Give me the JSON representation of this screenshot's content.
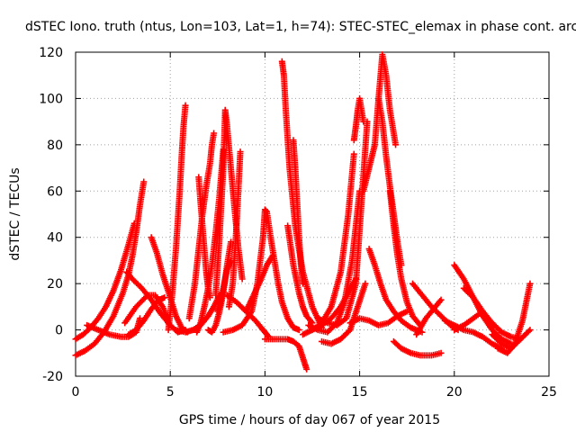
{
  "chart_data": {
    "type": "scatter",
    "title": "dSTEC Iono. truth (ntus, Lon=103, Lat=1, h=74): STEC-STEC_elemax in phase cont. arc",
    "xlabel": "GPS time / hours of day 067 of year 2015",
    "ylabel": "dSTEC  / TECUs",
    "xlim": [
      0,
      25
    ],
    "ylim": [
      -20,
      120
    ],
    "xticks": [
      0,
      5,
      10,
      15,
      20,
      25
    ],
    "yticks": [
      -20,
      0,
      20,
      40,
      60,
      80,
      100,
      120
    ],
    "grid": true,
    "marker": "+",
    "color": "#ff0000",
    "series": [
      {
        "x": [
          0.0,
          0.4,
          0.8,
          1.2,
          1.6,
          2.0,
          2.4,
          2.8,
          3.1
        ],
        "y": [
          -4,
          -2,
          1,
          5,
          10,
          17,
          26,
          37,
          46
        ]
      },
      {
        "x": [
          0.0,
          0.5,
          1.0,
          1.5,
          2.0,
          2.5,
          2.8,
          3.0,
          3.2,
          3.4,
          3.6
        ],
        "y": [
          -11,
          -9,
          -6,
          -1,
          6,
          16,
          24,
          32,
          42,
          54,
          64
        ]
      },
      {
        "x": [
          0.6,
          1.2,
          1.8,
          2.4,
          2.8,
          3.2,
          3.4
        ],
        "y": [
          2,
          0,
          -2,
          -3,
          -3,
          -1,
          5
        ]
      },
      {
        "x": [
          2.7,
          3.0,
          3.5,
          4.0,
          4.5,
          5.0,
          5.4,
          5.8
        ],
        "y": [
          25,
          22,
          18,
          13,
          7,
          2,
          -1,
          0
        ]
      },
      {
        "x": [
          2.6,
          3.2,
          3.8,
          4.2,
          4.6,
          4.9
        ],
        "y": [
          3,
          10,
          15,
          15,
          10,
          3
        ]
      },
      {
        "x": [
          2.8,
          3.2,
          3.6,
          4.0,
          4.4,
          4.7
        ],
        "y": [
          -2,
          0,
          4,
          9,
          13,
          14
        ]
      },
      {
        "x": [
          4.0,
          4.3,
          4.6,
          5.0,
          5.3,
          5.6,
          5.9
        ],
        "y": [
          40,
          33,
          24,
          14,
          6,
          1,
          -1
        ]
      },
      {
        "x": [
          4.9,
          5.1,
          5.3,
          5.5,
          5.6,
          5.7,
          5.8
        ],
        "y": [
          0,
          15,
          35,
          60,
          75,
          88,
          97
        ]
      },
      {
        "x": [
          5.3,
          5.8,
          6.2,
          6.6,
          7.0,
          7.3,
          7.6
        ],
        "y": [
          0,
          -1,
          0,
          2,
          6,
          10,
          15
        ]
      },
      {
        "x": [
          6.0,
          6.3,
          6.5,
          6.7,
          6.9,
          7.1,
          7.2,
          7.3
        ],
        "y": [
          5,
          20,
          35,
          50,
          62,
          72,
          80,
          85
        ]
      },
      {
        "x": [
          6.5,
          6.6,
          6.7,
          6.8,
          6.9,
          7.0,
          7.1
        ],
        "y": [
          66,
          55,
          45,
          35,
          25,
          18,
          14
        ]
      },
      {
        "x": [
          6.4,
          6.6,
          6.8,
          7.0,
          7.2,
          7.4,
          7.6,
          7.8
        ],
        "y": [
          -1,
          3,
          10,
          18,
          28,
          42,
          58,
          78
        ]
      },
      {
        "x": [
          7.0,
          7.2,
          7.4,
          7.6,
          7.8,
          8.0,
          8.2
        ],
        "y": [
          0,
          -1,
          2,
          8,
          16,
          28,
          38
        ]
      },
      {
        "x": [
          7.5,
          7.6,
          7.7,
          7.8,
          7.9,
          8.0,
          8.2
        ],
        "y": [
          8,
          10,
          14,
          18,
          22,
          26,
          30
        ]
      },
      {
        "x": [
          7.4,
          7.6,
          7.8,
          7.9,
          8.0,
          8.2,
          8.4,
          8.6,
          8.8
        ],
        "y": [
          15,
          40,
          70,
          95,
          88,
          70,
          52,
          35,
          22
        ]
      },
      {
        "x": [
          8.1,
          8.3,
          8.5,
          8.7
        ],
        "y": [
          10,
          20,
          45,
          77
        ]
      },
      {
        "x": [
          7.8,
          8.3,
          8.8,
          9.3,
          9.6,
          9.9,
          10.0,
          10.1
        ],
        "y": [
          -1,
          0,
          2,
          8,
          20,
          40,
          52,
          51
        ]
      },
      {
        "x": [
          10.1,
          10.3,
          10.5,
          10.7,
          10.9,
          11.2,
          11.5,
          11.8
        ],
        "y": [
          51,
          40,
          30,
          20,
          12,
          5,
          1,
          0
        ]
      },
      {
        "x": [
          8.0,
          8.5,
          9.0,
          9.5,
          9.8,
          10.0,
          10.2
        ],
        "y": [
          15,
          12,
          8,
          4,
          1,
          -1,
          -3
        ]
      },
      {
        "x": [
          9.0,
          9.4,
          9.8,
          10.1,
          10.4
        ],
        "y": [
          8,
          15,
          22,
          28,
          32
        ]
      },
      {
        "x": [
          10.0,
          10.4,
          10.8,
          11.2,
          11.5,
          11.8,
          12.0,
          12.2
        ],
        "y": [
          -4,
          -4,
          -4,
          -4,
          -5,
          -7,
          -12,
          -17
        ]
      },
      {
        "x": [
          10.9,
          11.0,
          11.1,
          11.3,
          11.6,
          12.0,
          12.5,
          13.0
        ],
        "y": [
          116,
          110,
          95,
          70,
          45,
          25,
          10,
          1
        ]
      },
      {
        "x": [
          11.2,
          11.5,
          11.8,
          12.0,
          12.2,
          12.5
        ],
        "y": [
          45,
          28,
          16,
          10,
          6,
          3
        ]
      },
      {
        "x": [
          11.5,
          11.6,
          11.7,
          11.8,
          11.9,
          12.0
        ],
        "y": [
          82,
          70,
          55,
          40,
          28,
          20
        ]
      },
      {
        "x": [
          12.0,
          12.5,
          13.0,
          13.5,
          14.0,
          14.4,
          14.7
        ],
        "y": [
          -2,
          0,
          3,
          10,
          25,
          50,
          76
        ]
      },
      {
        "x": [
          12.3,
          12.8,
          13.3,
          13.8,
          14.2,
          14.6,
          15.0
        ],
        "y": [
          2,
          0,
          -1,
          3,
          12,
          30,
          60
        ]
      },
      {
        "x": [
          12.8,
          13.3,
          13.8,
          14.3,
          14.8,
          15.1,
          15.4
        ],
        "y": [
          5,
          3,
          2,
          5,
          20,
          55,
          90
        ]
      },
      {
        "x": [
          14.7,
          14.8,
          14.9,
          15.0,
          15.1,
          15.2
        ],
        "y": [
          82,
          88,
          95,
          100,
          95,
          90
        ]
      },
      {
        "x": [
          13.0,
          13.5,
          14.0,
          14.5,
          14.9,
          15.3
        ],
        "y": [
          -5,
          -6,
          -4,
          0,
          10,
          20
        ]
      },
      {
        "x": [
          12.5,
          13.0,
          13.5,
          14.0,
          14.4,
          14.8
        ],
        "y": [
          0,
          2,
          5,
          10,
          16,
          22
        ]
      },
      {
        "x": [
          15.2,
          15.5,
          15.8,
          16.0,
          16.2,
          16.4,
          16.6,
          16.9
        ],
        "y": [
          60,
          70,
          80,
          100,
          119,
          110,
          95,
          80
        ]
      },
      {
        "x": [
          16.0,
          16.2,
          16.4,
          16.6,
          16.8,
          17.0,
          17.2
        ],
        "y": [
          100,
          90,
          75,
          62,
          50,
          38,
          28
        ]
      },
      {
        "x": [
          15.5,
          15.8,
          16.1,
          16.4,
          16.8,
          17.2,
          17.7,
          18.3
        ],
        "y": [
          35,
          28,
          20,
          13,
          8,
          4,
          1,
          -1
        ]
      },
      {
        "x": [
          16.6,
          16.8,
          17.0,
          17.2,
          17.5,
          17.8,
          18.2
        ],
        "y": [
          60,
          45,
          32,
          22,
          12,
          6,
          2
        ]
      },
      {
        "x": [
          16.8,
          17.2,
          17.7,
          18.2,
          18.8,
          19.3
        ],
        "y": [
          -5,
          -8,
          -10,
          -11,
          -11,
          -10
        ]
      },
      {
        "x": [
          14.5,
          15.0,
          15.5,
          16.0,
          16.5,
          17.0,
          17.5
        ],
        "y": [
          3,
          5,
          4,
          2,
          3,
          6,
          8
        ]
      },
      {
        "x": [
          17.8,
          18.3,
          18.8,
          19.3,
          19.8,
          20.2
        ],
        "y": [
          20,
          15,
          10,
          6,
          2,
          0
        ]
      },
      {
        "x": [
          18.0,
          18.5,
          19.0,
          19.3
        ],
        "y": [
          -2,
          5,
          10,
          13
        ]
      },
      {
        "x": [
          20.0,
          20.5,
          21.0,
          21.5,
          22.0,
          22.5,
          23.0
        ],
        "y": [
          28,
          22,
          14,
          6,
          0,
          -4,
          -6
        ]
      },
      {
        "x": [
          20.5,
          21.0,
          21.5,
          22.0,
          22.5,
          23.0,
          23.5
        ],
        "y": [
          18,
          14,
          8,
          3,
          -1,
          -3,
          -4
        ]
      },
      {
        "x": [
          19.5,
          20.0,
          20.5,
          21.0,
          21.5,
          22.0,
          22.5
        ],
        "y": [
          4,
          2,
          0,
          -1,
          -3,
          -6,
          -8
        ]
      },
      {
        "x": [
          22.0,
          22.5,
          23.0,
          23.5,
          24.0
        ],
        "y": [
          -2,
          -6,
          -8,
          -4,
          0
        ]
      },
      {
        "x": [
          22.3,
          22.8,
          23.2,
          23.6,
          24.0
        ],
        "y": [
          -8,
          -10,
          -6,
          4,
          20
        ]
      },
      {
        "x": [
          20.0,
          20.5,
          21.0,
          21.5
        ],
        "y": [
          0,
          2,
          5,
          8
        ]
      }
    ]
  }
}
